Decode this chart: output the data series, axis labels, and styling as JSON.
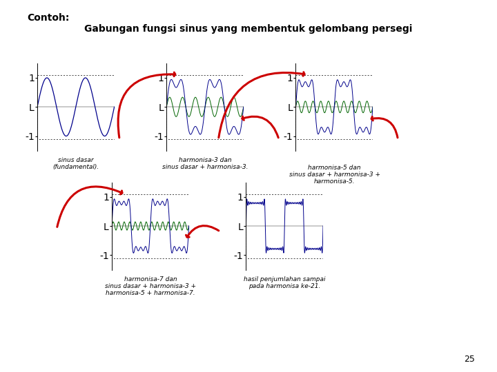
{
  "title_bold": "Contoh:",
  "title_main": "Gabungan fungsi sinus yang membentuk gelombang persegi",
  "background_color": "#ffffff",
  "fundamental_color": "#00008B",
  "harmonic_color": "#006400",
  "sum_color": "#00008B",
  "square_wave_color": "#00008B",
  "arrow_color": "#cc0000",
  "labels": [
    "sinus dasar\n(fundamental).",
    "harmonisa-3 dan\nsinus dasar + harmonisa-3.",
    "harmonisa-5 dan\nsinus dasar + harmonisa-3 +\nharmonisa-5.",
    "harmonisa-7 dan\nsinus dasar + harmonisa-3 +\nharmonisa-5 + harmonisa-7.",
    "hasil penjumlahan sampai\npada harmonisa ke-21."
  ],
  "page_number": "25"
}
